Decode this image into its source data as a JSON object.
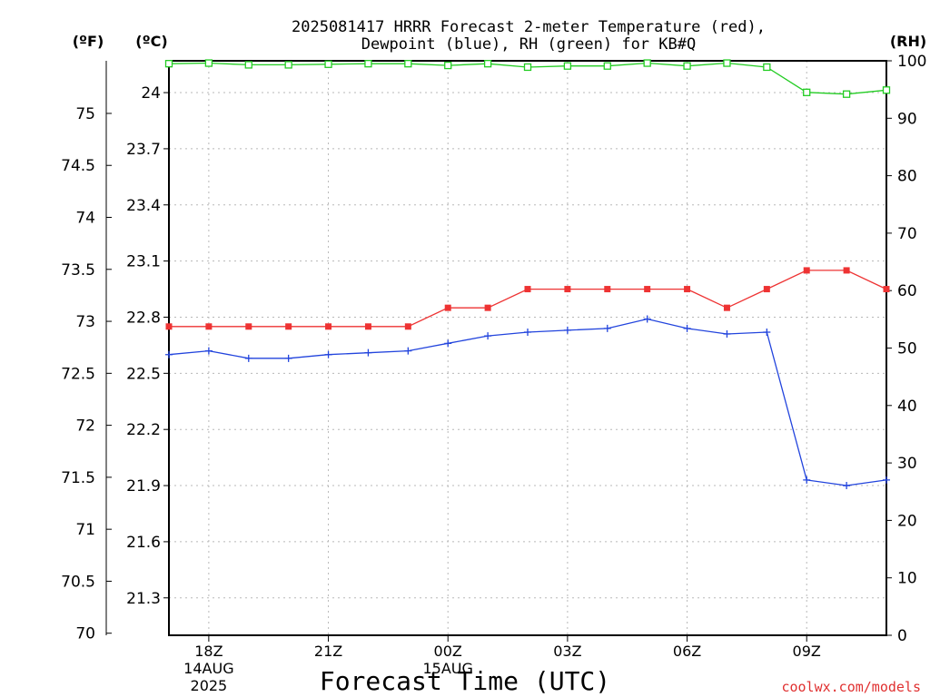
{
  "chart_data": {
    "type": "line",
    "title_line1": "2025081417 HRRR Forecast 2-meter Temperature (red),",
    "title_line2": "Dewpoint (blue), RH (green) for KB#Q",
    "xlabel": "Forecast Time (UTC)",
    "unit_f": "(ºF)",
    "unit_c": "(ºC)",
    "unit_rh": "(RH)",
    "credit": "coolwx.com/models",
    "x_ticks": [
      {
        "h": 1,
        "label": "18Z",
        "sub1": "14AUG",
        "sub2": "2025"
      },
      {
        "h": 4,
        "label": "21Z",
        "sub1": "",
        "sub2": ""
      },
      {
        "h": 7,
        "label": "00Z",
        "sub1": "15AUG",
        "sub2": ""
      },
      {
        "h": 10,
        "label": "03Z",
        "sub1": "",
        "sub2": ""
      },
      {
        "h": 13,
        "label": "06Z",
        "sub1": "",
        "sub2": ""
      },
      {
        "h": 16,
        "label": "09Z",
        "sub1": "",
        "sub2": ""
      }
    ],
    "xlim": [
      0,
      18
    ],
    "c_ticks": [
      "24",
      "23.7",
      "23.4",
      "23.1",
      "22.8",
      "22.5",
      "22.2",
      "21.9",
      "21.6",
      "21.3"
    ],
    "f_ticks": [
      "75",
      "74.5",
      "74",
      "73.5",
      "73",
      "72.5",
      "72",
      "71.5",
      "71",
      "70.5",
      "70"
    ],
    "rh_ticks": [
      "100",
      "90",
      "80",
      "70",
      "60",
      "50",
      "40",
      "30",
      "20",
      "10",
      "0"
    ],
    "ylim_c": [
      21.1,
      24.17
    ],
    "ylim_rh": [
      0,
      100
    ],
    "grid": true,
    "series": [
      {
        "name": "Temperature",
        "color": "#ee3333",
        "marker": "filled-square",
        "axis": "c",
        "x": [
          0,
          1,
          2,
          3,
          4,
          5,
          6,
          7,
          8,
          9,
          10,
          11,
          12,
          13,
          14,
          15,
          16,
          17,
          18
        ],
        "values": [
          22.75,
          22.75,
          22.75,
          22.75,
          22.75,
          22.75,
          22.75,
          22.85,
          22.85,
          22.95,
          22.95,
          22.95,
          22.95,
          22.95,
          22.85,
          22.95,
          23.05,
          23.05,
          22.95
        ]
      },
      {
        "name": "Dewpoint",
        "color": "#2244dd",
        "marker": "plus",
        "axis": "c",
        "x": [
          0,
          1,
          2,
          3,
          4,
          5,
          6,
          7,
          8,
          9,
          10,
          11,
          12,
          13,
          14,
          15,
          16,
          17,
          18
        ],
        "values": [
          22.6,
          22.62,
          22.58,
          22.58,
          22.6,
          22.61,
          22.62,
          22.66,
          22.7,
          22.72,
          22.73,
          22.74,
          22.79,
          22.74,
          22.71,
          22.72,
          21.93,
          21.9,
          21.93
        ]
      },
      {
        "name": "RH",
        "color": "#22cc22",
        "marker": "open-square",
        "axis": "rh",
        "x": [
          0,
          1,
          2,
          3,
          4,
          5,
          6,
          7,
          8,
          9,
          10,
          11,
          12,
          13,
          14,
          15,
          16,
          17,
          18
        ],
        "values": [
          99.5,
          99.6,
          99.3,
          99.3,
          99.4,
          99.5,
          99.5,
          99.2,
          99.5,
          98.9,
          99.1,
          99.1,
          99.6,
          99.1,
          99.6,
          98.9,
          94.5,
          94.2,
          94.9
        ]
      }
    ]
  }
}
